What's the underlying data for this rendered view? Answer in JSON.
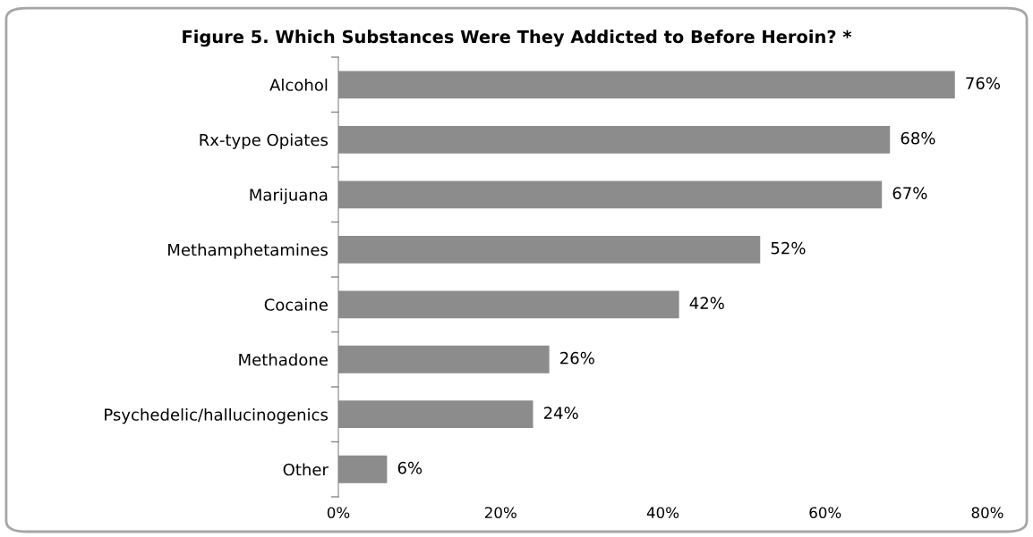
{
  "chart_data": {
    "type": "bar",
    "orientation": "horizontal",
    "title": "Figure 5. Which Substances Were They Addicted to Before Heroin? *",
    "categories": [
      "Alcohol",
      "Rx-type Opiates",
      "Marijuana",
      "Methamphetamines",
      "Cocaine",
      "Methadone",
      "Psychedelic/hallucinogenics",
      "Other"
    ],
    "values": [
      76,
      68,
      67,
      52,
      42,
      26,
      24,
      6
    ],
    "value_labels": [
      "76%",
      "68%",
      "67%",
      "52%",
      "42%",
      "26%",
      "24%",
      "6%"
    ],
    "color": "#8c8c8c",
    "xlim": [
      0,
      80
    ],
    "xticks": [
      {
        "value": 0,
        "label": "0%"
      },
      {
        "value": 20,
        "label": "20%"
      },
      {
        "value": 40,
        "label": "40%"
      },
      {
        "value": 60,
        "label": "60%"
      },
      {
        "value": 80,
        "label": "80%"
      }
    ],
    "grid": false,
    "legend": false
  }
}
